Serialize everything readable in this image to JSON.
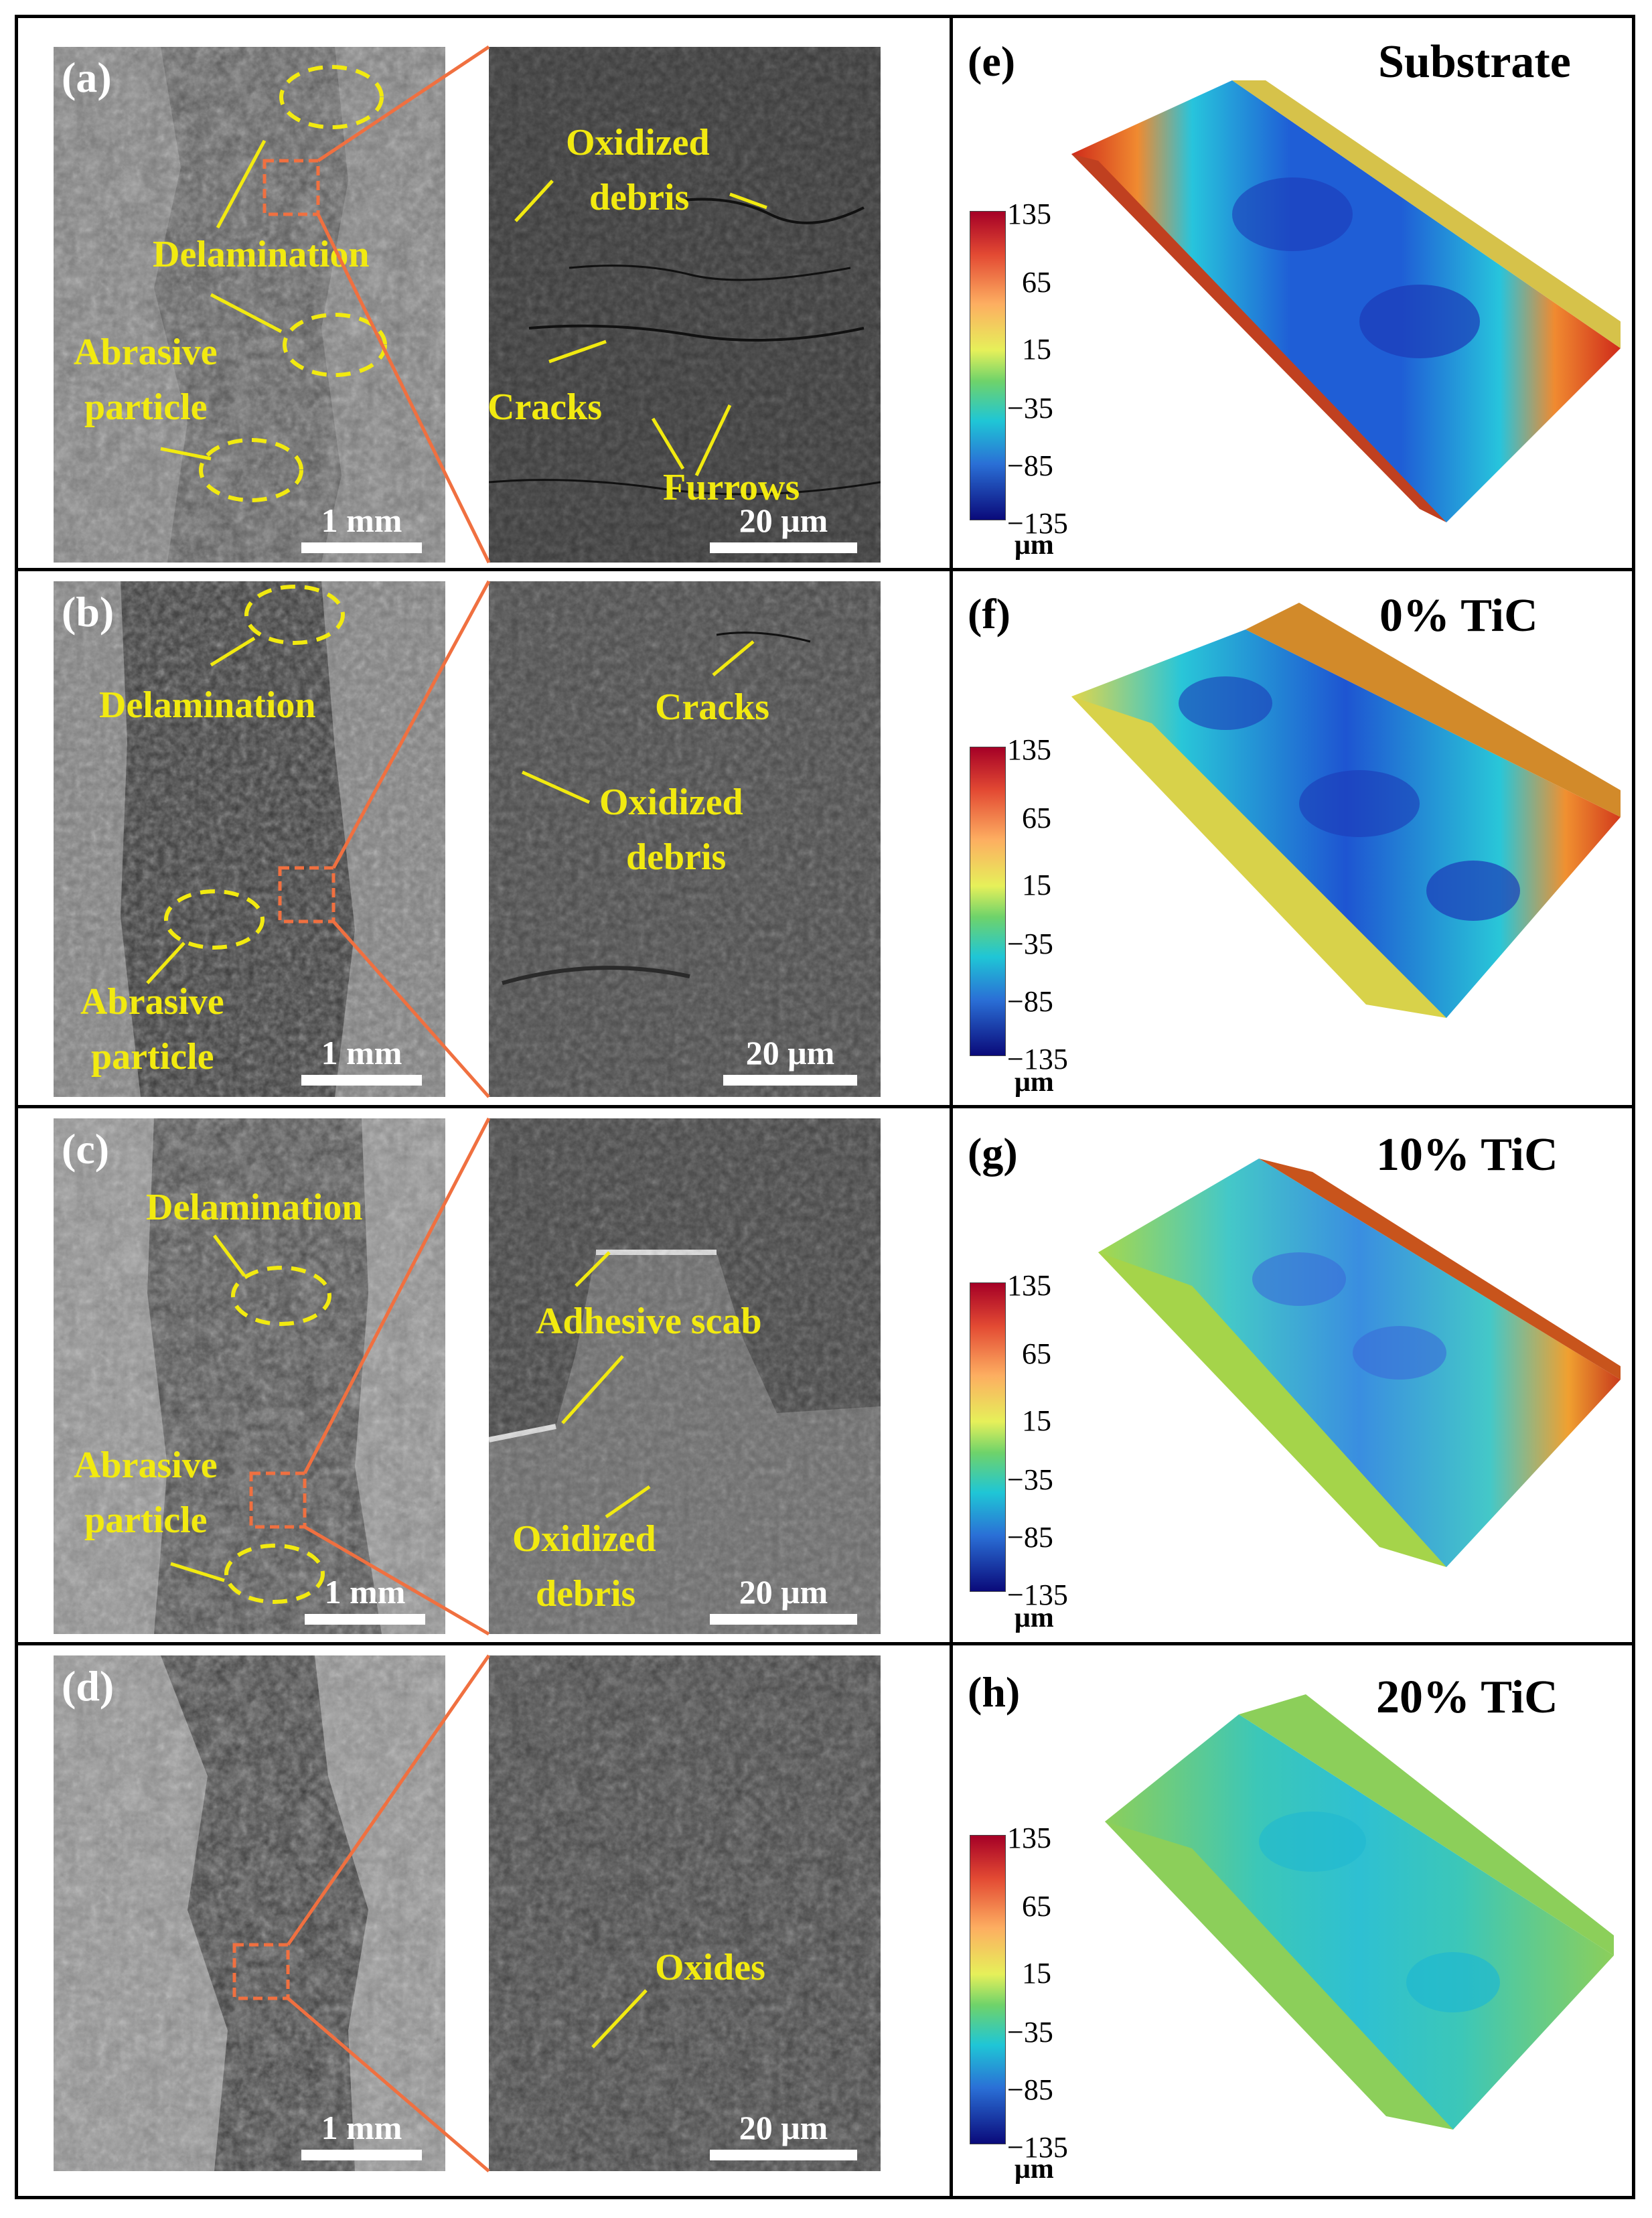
{
  "panels": {
    "a": {
      "label": "(a)",
      "overview_labels": [
        "Delamination",
        "Abrasive",
        "particle"
      ],
      "overview_scale": "1 mm",
      "zoom_labels": [
        "Oxidized",
        "debris",
        "Cracks",
        "Furrows"
      ],
      "zoom_scale": "20 μm"
    },
    "b": {
      "label": "(b)",
      "overview_labels": [
        "Delamination",
        "Abrasive",
        "particle"
      ],
      "overview_scale": "1 mm",
      "zoom_labels": [
        "Cracks",
        "Oxidized",
        "debris"
      ],
      "zoom_scale": "20 μm"
    },
    "c": {
      "label": "(c)",
      "overview_labels": [
        "Delamination",
        "Abrasive",
        "particle"
      ],
      "overview_scale": "1 mm",
      "zoom_labels": [
        "Adhesive scab",
        "Oxidized",
        "debris"
      ],
      "zoom_scale": "20 μm"
    },
    "d": {
      "label": "(d)",
      "overview_scale": "1 mm",
      "zoom_labels": [
        "Oxides"
      ],
      "zoom_scale": "20 μm"
    },
    "e": {
      "label": "(e)",
      "title": "Substrate"
    },
    "f": {
      "label": "(f)",
      "title": "0% TiC"
    },
    "g": {
      "label": "(g)",
      "title": "10% TiC"
    },
    "h": {
      "label": "(h)",
      "title": "20% TiC"
    }
  },
  "colorbar": {
    "ticks": [
      "135",
      "65",
      "15",
      "−35",
      "−85",
      "−135"
    ],
    "unit": "μm",
    "colors": [
      "#a50026",
      "#f46d43",
      "#fee08b",
      "#d9ef8b",
      "#66bd63",
      "#00bcd4",
      "#2166ac",
      "#08006b"
    ]
  },
  "colors": {
    "annotation": "#f2ea10",
    "zoom_box": "#f07040",
    "scale_bar": "#ffffff"
  }
}
